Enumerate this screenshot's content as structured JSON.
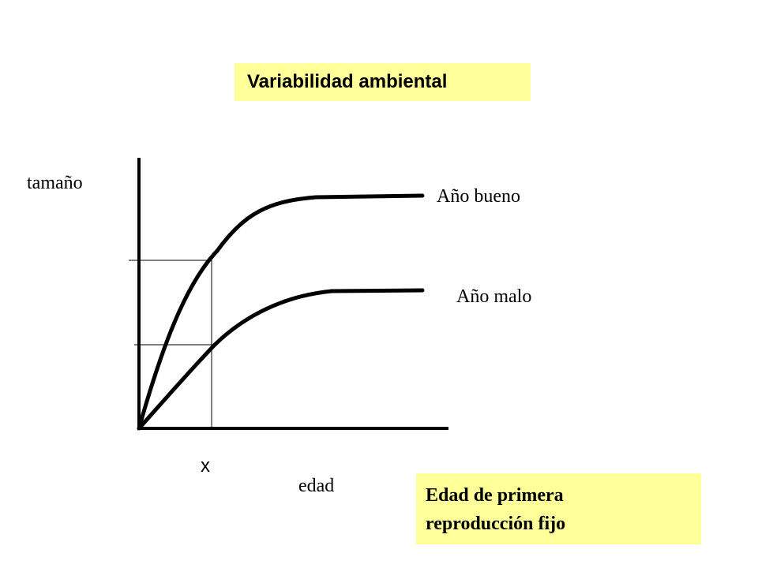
{
  "title": "Variabilidad ambiental",
  "note": {
    "line1": "Edad de primera",
    "line2": "reproducción fijo"
  },
  "axes": {
    "y_label": "tamaño",
    "x_label": "edad",
    "x_marker": "x"
  },
  "curves": [
    {
      "label": "Año bueno"
    },
    {
      "label": "Año malo"
    }
  ],
  "colors": {
    "highlight": "#ffff99",
    "ink": "#000000"
  }
}
